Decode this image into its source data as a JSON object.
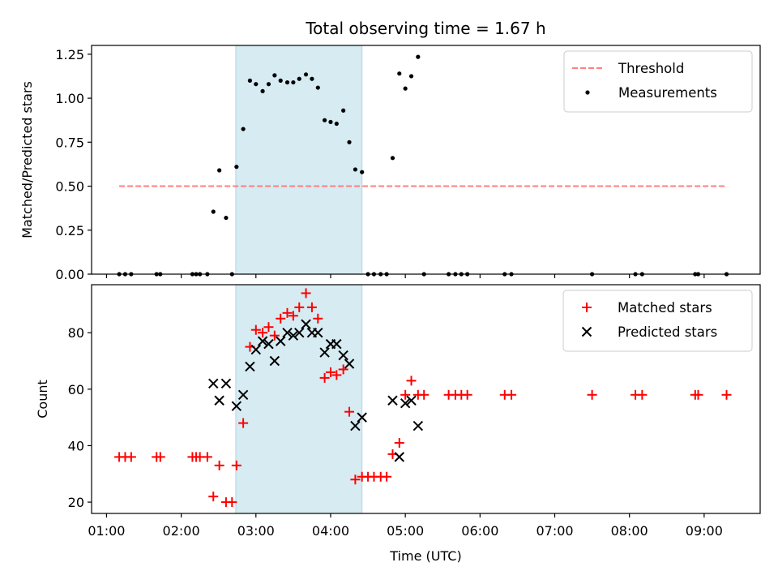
{
  "chart_data": {
    "title": "Total observing time = 1.67 h",
    "x_axis": {
      "label": "Time (UTC)",
      "ticks": [
        "01:00",
        "02:00",
        "03:00",
        "04:00",
        "05:00",
        "06:00",
        "07:00",
        "08:00",
        "09:00"
      ],
      "tick_hours": [
        1,
        2,
        3,
        4,
        5,
        6,
        7,
        8,
        9
      ],
      "range_hours": [
        0.8,
        9.75
      ]
    },
    "highlight_span_hours": [
      2.73,
      4.42
    ],
    "panels": [
      {
        "type": "scatter",
        "ylabel": "Matched/Predicted stars",
        "ylim": [
          0,
          1.3
        ],
        "yticks": [
          0,
          0.25,
          0.5,
          0.75,
          1.0,
          1.25
        ],
        "ytick_labels": [
          "0.00",
          "0.25",
          "0.50",
          "0.75",
          "1.00",
          "1.25"
        ],
        "legend_position": "top-right",
        "threshold": {
          "name": "Threshold",
          "value": 0.5,
          "x_range": [
            1.17,
            9.3
          ],
          "color": "#ff7f7f"
        },
        "series": [
          {
            "name": "Measurements",
            "color": "#000000",
            "points": [
              [
                1.17,
                0
              ],
              [
                1.25,
                0
              ],
              [
                1.33,
                0
              ],
              [
                1.67,
                0
              ],
              [
                1.72,
                0
              ],
              [
                2.15,
                0
              ],
              [
                2.2,
                0
              ],
              [
                2.25,
                0
              ],
              [
                2.35,
                0
              ],
              [
                2.43,
                0.355
              ],
              [
                2.51,
                0.59
              ],
              [
                2.6,
                0.32
              ],
              [
                2.68,
                0
              ],
              [
                2.74,
                0.61
              ],
              [
                2.83,
                0.825
              ],
              [
                2.92,
                1.1
              ],
              [
                3.0,
                1.08
              ],
              [
                3.09,
                1.04
              ],
              [
                3.17,
                1.08
              ],
              [
                3.25,
                1.13
              ],
              [
                3.33,
                1.1
              ],
              [
                3.42,
                1.09
              ],
              [
                3.5,
                1.09
              ],
              [
                3.58,
                1.11
              ],
              [
                3.67,
                1.135
              ],
              [
                3.75,
                1.11
              ],
              [
                3.83,
                1.06
              ],
              [
                3.92,
                0.875
              ],
              [
                4.0,
                0.865
              ],
              [
                4.08,
                0.855
              ],
              [
                4.17,
                0.93
              ],
              [
                4.25,
                0.75
              ],
              [
                4.33,
                0.595
              ],
              [
                4.42,
                0.58
              ],
              [
                4.5,
                0
              ],
              [
                4.58,
                0
              ],
              [
                4.67,
                0
              ],
              [
                4.75,
                0
              ],
              [
                4.83,
                0.66
              ],
              [
                4.92,
                1.14
              ],
              [
                5.0,
                1.055
              ],
              [
                5.08,
                1.125
              ],
              [
                5.17,
                1.235
              ],
              [
                5.25,
                0
              ],
              [
                5.58,
                0
              ],
              [
                5.67,
                0
              ],
              [
                5.75,
                0
              ],
              [
                5.83,
                0
              ],
              [
                6.33,
                0
              ],
              [
                6.42,
                0
              ],
              [
                7.5,
                0
              ],
              [
                8.08,
                0
              ],
              [
                8.17,
                0
              ],
              [
                8.88,
                0
              ],
              [
                8.92,
                0
              ],
              [
                9.3,
                0
              ]
            ]
          }
        ]
      },
      {
        "type": "scatter",
        "ylabel": "Count",
        "ylim": [
          16,
          97
        ],
        "yticks": [
          20,
          40,
          60,
          80
        ],
        "ytick_labels": [
          "20",
          "40",
          "60",
          "80"
        ],
        "legend_position": "top-right",
        "series": [
          {
            "name": "Matched stars",
            "marker": "plus",
            "color": "#ff0000",
            "points": [
              [
                1.17,
                36
              ],
              [
                1.25,
                36
              ],
              [
                1.33,
                36
              ],
              [
                1.67,
                36
              ],
              [
                1.72,
                36
              ],
              [
                2.15,
                36
              ],
              [
                2.2,
                36
              ],
              [
                2.25,
                36
              ],
              [
                2.35,
                36
              ],
              [
                2.43,
                22
              ],
              [
                2.51,
                33
              ],
              [
                2.6,
                20
              ],
              [
                2.68,
                20
              ],
              [
                2.74,
                33
              ],
              [
                2.83,
                48
              ],
              [
                2.92,
                75
              ],
              [
                3.0,
                81
              ],
              [
                3.09,
                80
              ],
              [
                3.17,
                82
              ],
              [
                3.25,
                79
              ],
              [
                3.33,
                85
              ],
              [
                3.42,
                87
              ],
              [
                3.5,
                86
              ],
              [
                3.58,
                89
              ],
              [
                3.67,
                94
              ],
              [
                3.75,
                89
              ],
              [
                3.83,
                85
              ],
              [
                3.92,
                64
              ],
              [
                4.0,
                66
              ],
              [
                4.08,
                65
              ],
              [
                4.17,
                67
              ],
              [
                4.25,
                52
              ],
              [
                4.33,
                28
              ],
              [
                4.42,
                29
              ],
              [
                4.5,
                29
              ],
              [
                4.58,
                29
              ],
              [
                4.67,
                29
              ],
              [
                4.75,
                29
              ],
              [
                4.83,
                37
              ],
              [
                4.92,
                41
              ],
              [
                5.0,
                58
              ],
              [
                5.08,
                63
              ],
              [
                5.17,
                58
              ],
              [
                5.25,
                58
              ],
              [
                5.58,
                58
              ],
              [
                5.67,
                58
              ],
              [
                5.75,
                58
              ],
              [
                5.83,
                58
              ],
              [
                6.33,
                58
              ],
              [
                6.42,
                58
              ],
              [
                7.5,
                58
              ],
              [
                8.08,
                58
              ],
              [
                8.17,
                58
              ],
              [
                8.88,
                58
              ],
              [
                8.92,
                58
              ],
              [
                9.3,
                58
              ]
            ]
          },
          {
            "name": "Predicted stars",
            "marker": "x",
            "color": "#000000",
            "points": [
              [
                2.43,
                62
              ],
              [
                2.51,
                56
              ],
              [
                2.6,
                62
              ],
              [
                2.74,
                54
              ],
              [
                2.83,
                58
              ],
              [
                2.92,
                68
              ],
              [
                3.0,
                74
              ],
              [
                3.09,
                77
              ],
              [
                3.17,
                76
              ],
              [
                3.25,
                70
              ],
              [
                3.33,
                77
              ],
              [
                3.42,
                80
              ],
              [
                3.5,
                79
              ],
              [
                3.58,
                80
              ],
              [
                3.67,
                83
              ],
              [
                3.75,
                80
              ],
              [
                3.83,
                80
              ],
              [
                3.92,
                73
              ],
              [
                4.0,
                76
              ],
              [
                4.08,
                76
              ],
              [
                4.17,
                72
              ],
              [
                4.25,
                69
              ],
              [
                4.33,
                47
              ],
              [
                4.42,
                50
              ],
              [
                4.83,
                56
              ],
              [
                4.92,
                36
              ],
              [
                5.0,
                55
              ],
              [
                5.08,
                56
              ],
              [
                5.17,
                47
              ]
            ]
          }
        ]
      }
    ]
  }
}
